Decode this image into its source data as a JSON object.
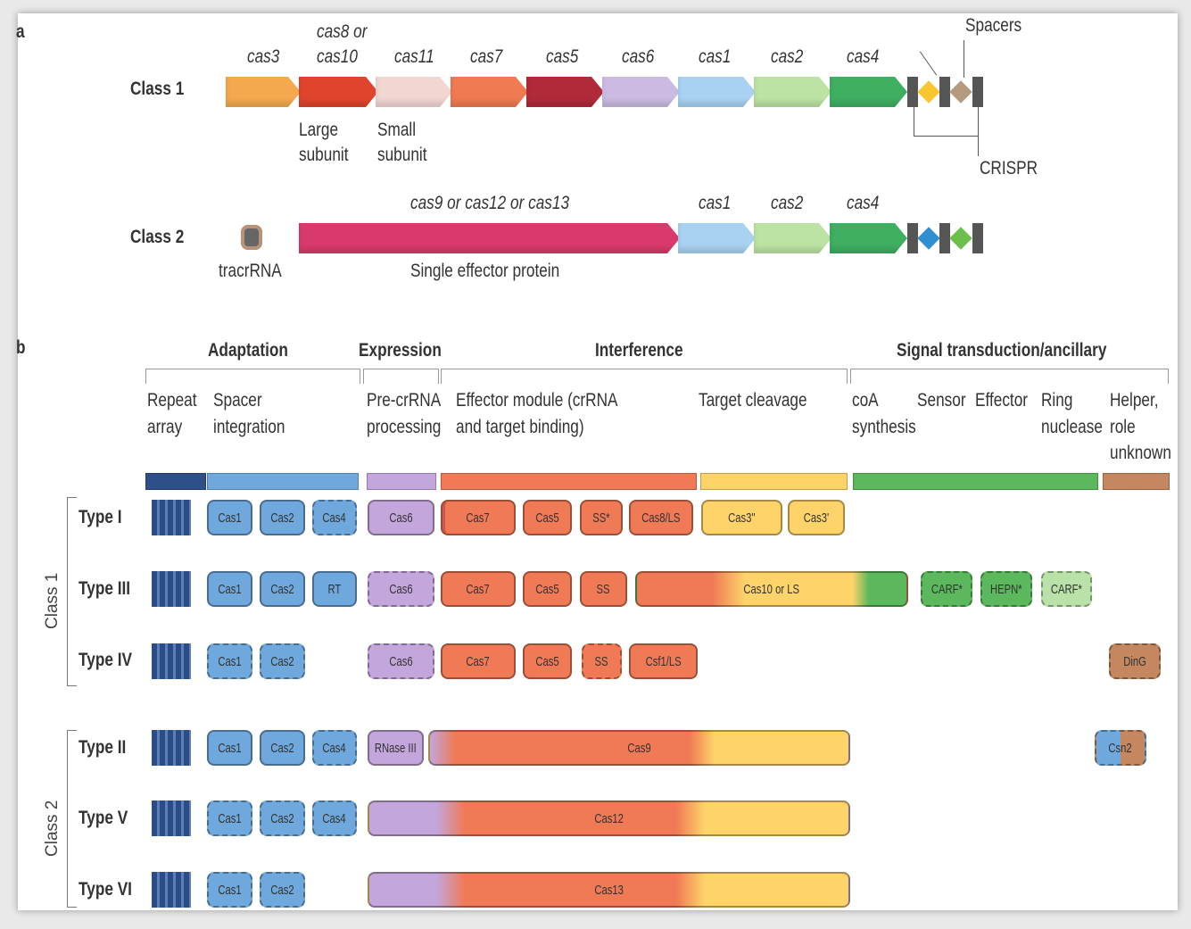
{
  "panel_a": {
    "label": "a",
    "class1": "Class 1",
    "class2": "Class 2",
    "genes1": [
      "cas3",
      "cas8 or",
      "cas10",
      "cas11",
      "cas7",
      "cas5",
      "cas6",
      "cas1",
      "cas2",
      "cas4"
    ],
    "large": [
      "Large",
      "subunit"
    ],
    "small": [
      "Small",
      "subunit"
    ],
    "spacers": "Spacers",
    "crispr": "CRISPR",
    "genes2": [
      "cas9 or cas12 or cas13",
      "cas1",
      "cas2",
      "cas4"
    ],
    "tracr": "tracrRNA",
    "single": "Single effector protein"
  },
  "panel_b": {
    "label": "b",
    "headers": [
      "Adaptation",
      "Expression",
      "Interference",
      "Signal transduction/ancillary"
    ],
    "sub": {
      "repeat": [
        "Repeat",
        "array"
      ],
      "spacer": [
        "Spacer",
        "integration"
      ],
      "pre": [
        "Pre-crRNA",
        "processing"
      ],
      "effector": [
        "Effector module (crRNA",
        "and target binding)"
      ],
      "target": "Target cleavage",
      "coa": [
        "coA",
        "synthesis"
      ],
      "sensor": "Sensor",
      "eff": "Effector",
      "ring": [
        "Ring",
        "nuclease"
      ],
      "helper": [
        "Helper,",
        "role",
        "unknown"
      ]
    },
    "class1": "Class 1",
    "class2": "Class 2",
    "types": [
      "Type I",
      "Type III",
      "Type IV",
      "Type II",
      "Type V",
      "Type VI"
    ],
    "t1": [
      "Cas1",
      "Cas2",
      "Cas4",
      "Cas6",
      "Cas7",
      "Cas5",
      "SS*",
      "Cas8/LS",
      "Cas3''",
      "Cas3'"
    ],
    "t3": [
      "Cas1",
      "Cas2",
      "RT",
      "Cas6",
      "Cas7",
      "Cas5",
      "SS",
      "Cas10 or LS",
      "CARF*",
      "HEPN*",
      "CARF*"
    ],
    "t4": [
      "Cas1",
      "Cas2",
      "Cas6",
      "Cas7",
      "Cas5",
      "SS",
      "Csf1/LS",
      "DinG"
    ],
    "t2": [
      "Cas1",
      "Cas2",
      "Cas4",
      "RNase III",
      "Cas9",
      "Csn2"
    ],
    "t5": [
      "Cas1",
      "Cas2",
      "Cas4",
      "Cas12"
    ],
    "t6": [
      "Cas1",
      "Cas2",
      "Cas13"
    ]
  }
}
